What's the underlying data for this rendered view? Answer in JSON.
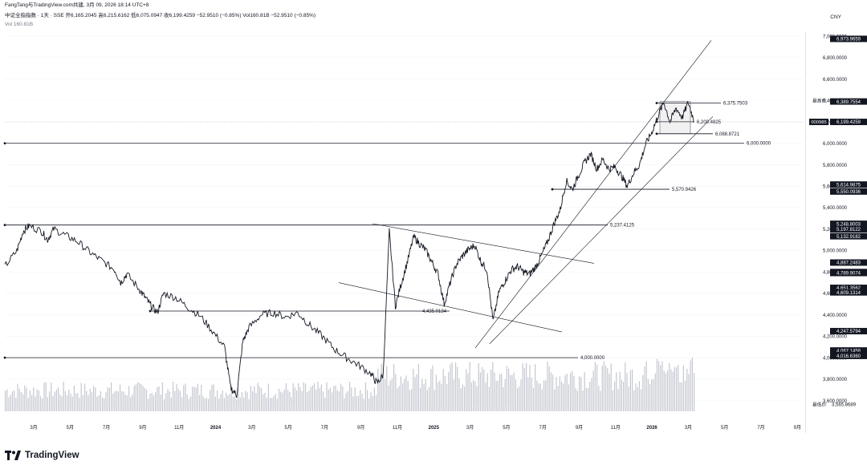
{
  "header": {
    "line1": "FangTang与TradingView.com共建, 3月 09, 2026 18:14 UTC+8",
    "line2": "中证全指指数 · 1天 · SSE  开6,165.2045  高6,215.6162  低6,075.0947  收6,199.4259  −52.9510 (−0.85%)  Vol160.81B  −52.9510 (−0.85%)",
    "line3": "Vol  160.81B",
    "currency": "CNY"
  },
  "footer": {
    "logo": "TradingView"
  },
  "colors": {
    "background": "#ffffff",
    "price": "#131722",
    "volume": "#b2b5be",
    "label_bg": "#131722",
    "label_text": "#ffffff",
    "grid": "#f0f3fa"
  },
  "chart_data": {
    "type": "line",
    "title": "中证全指指数 · 1天 · SSE",
    "ylim": [
      3500,
      7000
    ],
    "y_ticks": [
      "7,000.0000",
      "6,800.0000",
      "6,600.0000",
      "6,400.0000",
      "6,200.0000",
      "6,000.0000",
      "5,800.0000",
      "5,600.0000",
      "5,400.0000",
      "5,200.0000",
      "5,000.0000",
      "4,800.0000",
      "4,600.0000",
      "4,400.0000",
      "4,200.0000",
      "4,000.0000",
      "3,800.0000",
      "3,600.0000"
    ],
    "x_ticks": [
      "3月",
      "5月",
      "7月",
      "9月",
      "11月",
      "2024",
      "3月",
      "5月",
      "7月",
      "9月",
      "11月",
      "2025",
      "3月",
      "5月",
      "7月",
      "9月",
      "11月",
      "2026",
      "3月",
      "5月",
      "7月",
      "9月"
    ],
    "price_path": [
      [
        0.0,
        4850
      ],
      [
        0.02,
        5000
      ],
      [
        0.03,
        5180
      ],
      [
        0.04,
        5230
      ],
      [
        0.06,
        5180
      ],
      [
        0.07,
        5100
      ],
      [
        0.08,
        5200
      ],
      [
        0.1,
        5140
      ],
      [
        0.12,
        5080
      ],
      [
        0.14,
        4980
      ],
      [
        0.16,
        4900
      ],
      [
        0.18,
        4820
      ],
      [
        0.19,
        4700
      ],
      [
        0.2,
        4780
      ],
      [
        0.22,
        4640
      ],
      [
        0.23,
        4560
      ],
      [
        0.24,
        4480
      ],
      [
        0.25,
        4420
      ],
      [
        0.26,
        4600
      ],
      [
        0.28,
        4560
      ],
      [
        0.3,
        4470
      ],
      [
        0.32,
        4390
      ],
      [
        0.34,
        4250
      ],
      [
        0.36,
        4100
      ],
      [
        0.37,
        3720
      ],
      [
        0.38,
        3650
      ],
      [
        0.39,
        4150
      ],
      [
        0.4,
        4280
      ],
      [
        0.42,
        4400
      ],
      [
        0.44,
        4420
      ],
      [
        0.46,
        4380
      ],
      [
        0.48,
        4420
      ],
      [
        0.5,
        4300
      ],
      [
        0.52,
        4200
      ],
      [
        0.54,
        4080
      ],
      [
        0.56,
        4000
      ],
      [
        0.58,
        3930
      ],
      [
        0.6,
        3850
      ],
      [
        0.61,
        3760
      ],
      [
        0.62,
        3840
      ],
      [
        0.63,
        5180
      ],
      [
        0.64,
        4480
      ],
      [
        0.65,
        4700
      ],
      [
        0.66,
        4900
      ],
      [
        0.67,
        5130
      ],
      [
        0.68,
        5060
      ],
      [
        0.69,
        5000
      ],
      [
        0.7,
        4890
      ],
      [
        0.71,
        4780
      ],
      [
        0.72,
        4500
      ],
      [
        0.73,
        4700
      ],
      [
        0.74,
        4870
      ],
      [
        0.75,
        4950
      ],
      [
        0.76,
        5010
      ],
      [
        0.77,
        5050
      ],
      [
        0.78,
        4900
      ],
      [
        0.79,
        4820
      ],
      [
        0.8,
        4340
      ],
      [
        0.81,
        4620
      ],
      [
        0.82,
        4720
      ],
      [
        0.83,
        4820
      ],
      [
        0.84,
        4850
      ],
      [
        0.85,
        4800
      ],
      [
        0.86,
        4780
      ],
      [
        0.87,
        4850
      ],
      [
        0.88,
        4960
      ],
      [
        0.89,
        5090
      ],
      [
        0.9,
        5250
      ],
      [
        0.91,
        5380
      ],
      [
        0.92,
        5650
      ],
      [
        0.93,
        5570
      ],
      [
        0.94,
        5700
      ],
      [
        0.95,
        5820
      ],
      [
        0.96,
        5900
      ],
      [
        0.97,
        5760
      ],
      [
        0.98,
        5850
      ],
      [
        0.99,
        5760
      ],
      [
        1.0,
        5780
      ],
      [
        1.01,
        5700
      ],
      [
        1.02,
        5600
      ],
      [
        1.03,
        5720
      ],
      [
        1.04,
        5800
      ],
      [
        1.05,
        5990
      ],
      [
        1.06,
        6100
      ],
      [
        1.07,
        6250
      ],
      [
        1.08,
        6380
      ],
      [
        1.09,
        6200
      ],
      [
        1.1,
        6330
      ],
      [
        1.11,
        6240
      ],
      [
        1.12,
        6380
      ],
      [
        1.13,
        6199
      ]
    ],
    "levels": [
      {
        "label": "6,375.7503",
        "value": 6375.7503
      },
      {
        "label": "6,200.4825",
        "value": 6200.4825
      },
      {
        "label": "6,088.8721",
        "value": 6088.8721
      },
      {
        "label": "6,000.0000",
        "value": 6000.0
      },
      {
        "label": "5,570.9426",
        "value": 5570.9426
      },
      {
        "label": "5,237.4125",
        "value": 5237.4125
      },
      {
        "label": "4,435.0134",
        "value": 4435.0134
      },
      {
        "label": "4,000.0000",
        "value": 4000.0
      }
    ],
    "axis_labels": [
      {
        "text": "6,973.9659",
        "value": 6973.9659
      },
      {
        "text": "6,400.4054",
        "value": 6400.4054,
        "prefix": "最高价"
      },
      {
        "text": "6,389.7554",
        "value": 6389.7554
      },
      {
        "text": "6,199.4259",
        "value": 6199.4259,
        "prefix": "000985"
      },
      {
        "text": "5,614.9875",
        "value": 5614.9875
      },
      {
        "text": "5,550.0936",
        "value": 5550.0936
      },
      {
        "text": "5,248.8003",
        "value": 5248.8003
      },
      {
        "text": "5,197.8122",
        "value": 5197.8122
      },
      {
        "text": "5,132.9182",
        "value": 5132.9182
      },
      {
        "text": "4,887.2483",
        "value": 4887.2483
      },
      {
        "text": "4,799.1779",
        "value": 4799.1779
      },
      {
        "text": "4,789.9074",
        "value": 4789.9074
      },
      {
        "text": "4,651.3562",
        "value": 4651.3562
      },
      {
        "text": "4,609.1314",
        "value": 4609.1314
      },
      {
        "text": "4,247.5794",
        "value": 4247.5794
      },
      {
        "text": "4,067.1458",
        "value": 4067.1458
      },
      {
        "text": "4,025.9066",
        "value": 4025.9066
      },
      {
        "text": "4,016.6360",
        "value": 4016.636
      },
      {
        "text": "3,565.8689",
        "value": 3565.8689,
        "prefix": "最低价"
      }
    ]
  }
}
